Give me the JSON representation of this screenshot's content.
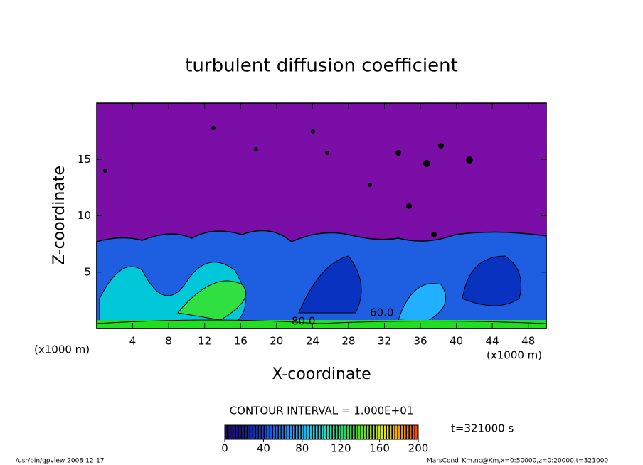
{
  "chart_data": {
    "type": "contour",
    "title": "turbulent diffusion coefficient",
    "x_label": "X-coordinate",
    "y_label": "Z-coordinate",
    "x_unit": "(x1000 m)",
    "y_unit": "(x1000 m)",
    "xlim": [
      0,
      50
    ],
    "xticks": [
      4,
      8,
      12,
      16,
      20,
      24,
      28,
      32,
      36,
      40,
      44,
      48
    ],
    "ylim": [
      0,
      20
    ],
    "yticks": [
      5,
      10,
      15
    ],
    "contour_labels": [
      "60.0",
      "80.0"
    ],
    "contour_interval": "CONTOUR INTERVAL = 1.000E+01",
    "time_label": "t=321000 s",
    "colorbar": {
      "lim": [
        0,
        200
      ],
      "ticks": [
        0,
        40,
        80,
        120,
        160,
        200
      ],
      "colormap": [
        "#1a0060",
        "#0b2fd0",
        "#1e90ff",
        "#00e5e5",
        "#22dd22",
        "#e8e800",
        "#ff4000"
      ]
    },
    "footer_left": "/usr/bin/gpview   2008-12-17",
    "footer_right": "MarsCond_Km.nc@Km,x=0:50000,z=0:20000,t=321000"
  }
}
